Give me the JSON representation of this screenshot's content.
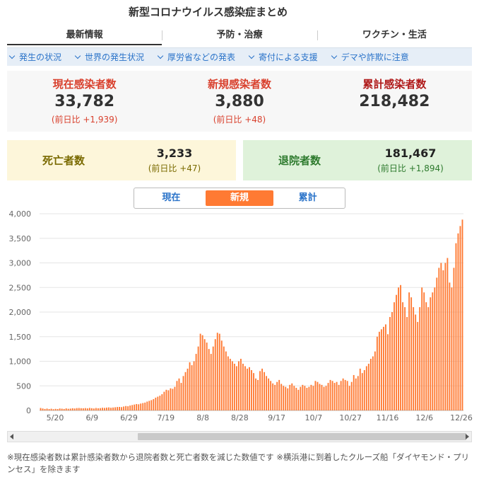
{
  "header": {
    "title": "新型コロナウイルス感染症まとめ"
  },
  "tabs": [
    {
      "label": "最新情報",
      "active": true
    },
    {
      "label": "予防・治療",
      "active": false
    },
    {
      "label": "ワクチン・生活",
      "active": false
    }
  ],
  "subnav": [
    {
      "label": "発生の状況"
    },
    {
      "label": "世界の発生状況"
    },
    {
      "label": "厚労省などの発表"
    },
    {
      "label": "寄付による支援"
    },
    {
      "label": "デマや詐欺に注意"
    }
  ],
  "stats": {
    "current": {
      "label": "現在感染者数",
      "value": "33,782",
      "sub": "(前日比 +1,939)"
    },
    "new": {
      "label": "新規感染者数",
      "value": "3,880",
      "sub": "(前日比 +48)"
    },
    "total": {
      "label": "累計感染者数",
      "value": "218,482"
    }
  },
  "deaths": {
    "label": "死亡者数",
    "value": "3,233",
    "sub": "(前日比 +47)"
  },
  "recovered": {
    "label": "退院者数",
    "value": "181,467",
    "sub": "(前日比 +1,894)"
  },
  "toggle": [
    {
      "label": "現在",
      "active": false
    },
    {
      "label": "新規",
      "active": true
    },
    {
      "label": "累計",
      "active": false
    }
  ],
  "colors": {
    "bar": "#ff7a33",
    "accent_blue": "#2a73c9",
    "red": "#d9412e"
  },
  "icons": {
    "subnav_marker": "chevron-down-icon",
    "scroll_left": "arrow-left-icon",
    "scroll_right": "arrow-right-icon"
  },
  "footnote": "※現在感染者数は累計感染者数から退院者数と死亡者数を減じた数値です ※横浜港に到着したクルーズ船「ダイヤモンド・プリンセス」を除きます",
  "chart_data": {
    "type": "bar",
    "title": "",
    "xlabel": "",
    "ylabel": "",
    "ylim": [
      0,
      4000
    ],
    "yticks": [
      "0",
      "500",
      "1,000",
      "1,500",
      "2,000",
      "2,500",
      "3,000",
      "3,500",
      "4,000"
    ],
    "xticks": [
      "5/20",
      "6/9",
      "6/29",
      "7/19",
      "8/8",
      "8/28",
      "9/17",
      "10/7",
      "10/27",
      "11/16",
      "12/6",
      "12/26"
    ],
    "grid": true,
    "legend": "none",
    "series": [
      {
        "values": [
          50,
          40,
          30,
          38,
          28,
          35,
          25,
          32,
          28,
          40,
          36,
          30,
          42,
          34,
          38,
          45,
          40,
          48,
          50,
          46,
          44,
          48,
          42,
          52,
          46,
          40,
          50,
          45,
          48,
          55,
          52,
          58,
          62,
          55,
          60,
          65,
          70,
          72,
          68,
          80,
          90,
          85,
          100,
          110,
          120,
          130,
          125,
          140,
          150,
          160,
          180,
          195,
          210,
          230,
          260,
          280,
          300,
          330,
          380,
          420,
          410,
          450,
          440,
          480,
          600,
          650,
          560,
          700,
          780,
          850,
          980,
          920,
          1000,
          1150,
          1300,
          1560,
          1530,
          1450,
          1380,
          1250,
          1150,
          1300,
          1450,
          1580,
          1560,
          1420,
          1300,
          1200,
          1100,
          1050,
          1000,
          950,
          900,
          1000,
          1050,
          950,
          900,
          850,
          880,
          820,
          760,
          650,
          620,
          800,
          850,
          780,
          700,
          650,
          600,
          550,
          520,
          580,
          620,
          540,
          500,
          480,
          450,
          520,
          550,
          500,
          460,
          420,
          480,
          520,
          500,
          460,
          480,
          520,
          500,
          600,
          580,
          540,
          520,
          480,
          500,
          560,
          620,
          600,
          560,
          580,
          520,
          600,
          650,
          620,
          600,
          500,
          580,
          720,
          650,
          700,
          850,
          760,
          820,
          900,
          950,
          1050,
          1100,
          1200,
          1500,
          1600,
          1650,
          1700,
          1750,
          1550,
          1900,
          2000,
          2200,
          2350,
          2500,
          2550,
          2200,
          2100,
          1900,
          2400,
          2300,
          2100,
          1950,
          1800,
          2100,
          2500,
          2400,
          2200,
          2100,
          2300,
          2400,
          2500,
          2700,
          2900,
          3000,
          2850,
          3000,
          3100,
          2600,
          2500,
          2900,
          3400,
          3600,
          3750,
          3880
        ]
      }
    ]
  }
}
